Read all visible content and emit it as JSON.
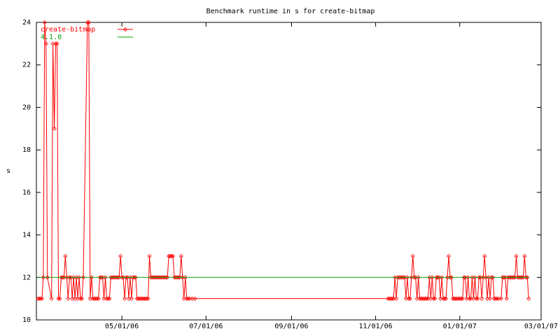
{
  "chart_data": {
    "type": "line",
    "title": "Benchmark runtime in s for create-bitmap",
    "ylabel": "s",
    "legend": "top-left",
    "xlim": [
      "2006-02-28",
      "2007-03-01"
    ],
    "xticks": [
      {
        "value": "2006-05-01",
        "label": "05/01/06"
      },
      {
        "value": "2006-07-01",
        "label": "07/01/06"
      },
      {
        "value": "2006-09-01",
        "label": "09/01/06"
      },
      {
        "value": "2006-11-01",
        "label": "11/01/06"
      },
      {
        "value": "2007-01-01",
        "label": "01/01/07"
      },
      {
        "value": "2007-03-01",
        "label": "03/01/07"
      }
    ],
    "ylim": [
      10,
      24
    ],
    "yticks": [
      10,
      12,
      14,
      16,
      18,
      20,
      22,
      24
    ],
    "series": [
      {
        "name": "create-bitmap",
        "color": "#ff0000",
        "markers": true,
        "x": [
          "2006-03-01",
          "2006-03-02",
          "2006-03-03",
          "2006-03-04",
          "2006-03-05",
          "2006-03-06",
          "2006-03-07",
          "2006-03-08",
          "2006-03-11",
          "2006-03-12",
          "2006-03-13",
          "2006-03-14",
          "2006-03-15",
          "2006-03-16",
          "2006-03-17",
          "2006-03-18",
          "2006-03-19",
          "2006-03-20",
          "2006-03-21",
          "2006-03-22",
          "2006-03-23",
          "2006-03-24",
          "2006-03-25",
          "2006-03-26",
          "2006-03-27",
          "2006-03-28",
          "2006-03-29",
          "2006-03-30",
          "2006-03-31",
          "2006-04-01",
          "2006-04-02",
          "2006-04-03",
          "2006-04-06",
          "2006-04-07",
          "2006-04-08",
          "2006-04-09",
          "2006-04-10",
          "2006-04-11",
          "2006-04-12",
          "2006-04-13",
          "2006-04-14",
          "2006-04-15",
          "2006-04-16",
          "2006-04-17",
          "2006-04-18",
          "2006-04-19",
          "2006-04-20",
          "2006-04-21",
          "2006-04-22",
          "2006-04-23",
          "2006-04-24",
          "2006-04-25",
          "2006-04-26",
          "2006-04-27",
          "2006-04-28",
          "2006-04-29",
          "2006-04-30",
          "2006-05-01",
          "2006-05-02",
          "2006-05-03",
          "2006-05-04",
          "2006-05-05",
          "2006-05-06",
          "2006-05-07",
          "2006-05-08",
          "2006-05-09",
          "2006-05-10",
          "2006-05-11",
          "2006-05-12",
          "2006-05-13",
          "2006-05-14",
          "2006-05-15",
          "2006-05-16",
          "2006-05-17",
          "2006-05-18",
          "2006-05-19",
          "2006-05-20",
          "2006-05-21",
          "2006-05-22",
          "2006-05-23",
          "2006-05-24",
          "2006-05-25",
          "2006-05-26",
          "2006-05-27",
          "2006-05-28",
          "2006-05-29",
          "2006-05-30",
          "2006-05-31",
          "2006-06-01",
          "2006-06-02",
          "2006-06-03",
          "2006-06-04",
          "2006-06-05",
          "2006-06-06",
          "2006-06-07",
          "2006-06-08",
          "2006-06-09",
          "2006-06-10",
          "2006-06-11",
          "2006-06-12",
          "2006-06-13",
          "2006-06-14",
          "2006-06-15",
          "2006-06-16",
          "2006-06-17",
          "2006-06-18",
          "2006-06-19",
          "2006-06-21",
          "2006-06-23",
          "2006-11-10",
          "2006-11-11",
          "2006-11-12",
          "2006-11-13",
          "2006-11-14",
          "2006-11-15",
          "2006-11-16",
          "2006-11-17",
          "2006-11-18",
          "2006-11-19",
          "2006-11-20",
          "2006-11-21",
          "2006-11-22",
          "2006-11-23",
          "2006-11-24",
          "2006-11-25",
          "2006-11-26",
          "2006-11-27",
          "2006-11-28",
          "2006-11-29",
          "2006-11-30",
          "2006-12-01",
          "2006-12-02",
          "2006-12-03",
          "2006-12-04",
          "2006-12-05",
          "2006-12-06",
          "2006-12-07",
          "2006-12-08",
          "2006-12-09",
          "2006-12-10",
          "2006-12-11",
          "2006-12-12",
          "2006-12-13",
          "2006-12-14",
          "2006-12-15",
          "2006-12-16",
          "2006-12-17",
          "2006-12-18",
          "2006-12-19",
          "2006-12-20",
          "2006-12-21",
          "2006-12-22",
          "2006-12-23",
          "2006-12-24",
          "2006-12-25",
          "2006-12-26",
          "2006-12-27",
          "2006-12-28",
          "2006-12-29",
          "2006-12-30",
          "2006-12-31",
          "2007-01-01",
          "2007-01-02",
          "2007-01-03",
          "2007-01-04",
          "2007-01-05",
          "2007-01-06",
          "2007-01-07",
          "2007-01-08",
          "2007-01-09",
          "2007-01-10",
          "2007-01-11",
          "2007-01-12",
          "2007-01-13",
          "2007-01-14",
          "2007-01-15",
          "2007-01-16",
          "2007-01-17",
          "2007-01-18",
          "2007-01-19",
          "2007-01-20",
          "2007-01-21",
          "2007-01-22",
          "2007-01-23",
          "2007-01-24",
          "2007-01-25",
          "2007-01-26",
          "2007-01-27",
          "2007-01-28",
          "2007-01-29",
          "2007-01-31",
          "2007-02-01",
          "2007-02-02",
          "2007-02-03",
          "2007-02-04",
          "2007-02-05",
          "2007-02-06",
          "2007-02-07",
          "2007-02-08",
          "2007-02-09",
          "2007-02-10",
          "2007-02-11",
          "2007-02-12",
          "2007-02-13",
          "2007-02-14",
          "2007-02-15",
          "2007-02-16",
          "2007-02-17",
          "2007-02-18",
          "2007-02-19",
          "2007-02-20"
        ],
        "values": [
          11,
          11,
          11,
          11,
          12,
          24,
          23,
          12,
          11,
          23,
          19,
          23,
          23,
          11,
          11,
          12,
          12,
          12,
          13,
          12,
          11,
          12,
          12,
          11,
          12,
          11,
          12,
          11,
          12,
          11,
          11,
          12,
          24,
          24,
          11,
          12,
          11,
          11,
          11,
          11,
          11,
          12,
          12,
          12,
          11,
          12,
          11,
          11,
          11,
          12,
          12,
          12,
          12,
          12,
          12,
          12,
          13,
          12,
          12,
          11,
          12,
          12,
          11,
          12,
          11,
          12,
          12,
          12,
          11,
          11,
          11,
          11,
          11,
          11,
          11,
          11,
          11,
          13,
          12,
          12,
          12,
          12,
          12,
          12,
          12,
          12,
          12,
          12,
          12,
          12,
          12,
          13,
          13,
          13,
          13,
          12,
          12,
          12,
          12,
          12,
          13,
          12,
          11,
          12,
          11,
          11,
          11,
          11,
          11,
          11,
          11,
          11,
          11,
          11,
          12,
          11,
          12,
          12,
          12,
          12,
          12,
          12,
          11,
          12,
          11,
          11,
          12,
          13,
          12,
          12,
          11,
          12,
          11,
          11,
          11,
          11,
          11,
          11,
          11,
          12,
          11,
          12,
          11,
          11,
          12,
          12,
          12,
          11,
          12,
          11,
          11,
          11,
          12,
          13,
          12,
          12,
          11,
          11,
          11,
          11,
          11,
          11,
          11,
          11,
          12,
          12,
          11,
          12,
          11,
          11,
          12,
          11,
          12,
          11,
          11,
          12,
          12,
          11,
          12,
          13,
          12,
          11,
          12,
          11,
          12,
          12,
          11,
          11,
          11,
          11,
          11,
          12,
          12,
          12,
          11,
          12,
          12,
          12,
          12,
          12,
          12,
          13,
          12,
          12,
          12,
          12,
          12,
          13,
          12,
          12,
          11
        ]
      },
      {
        "name": "4.1.0",
        "color": "#00a000",
        "markers": false,
        "x": [
          "2006-03-01",
          "2007-02-20"
        ],
        "values": [
          12,
          12
        ]
      }
    ]
  }
}
